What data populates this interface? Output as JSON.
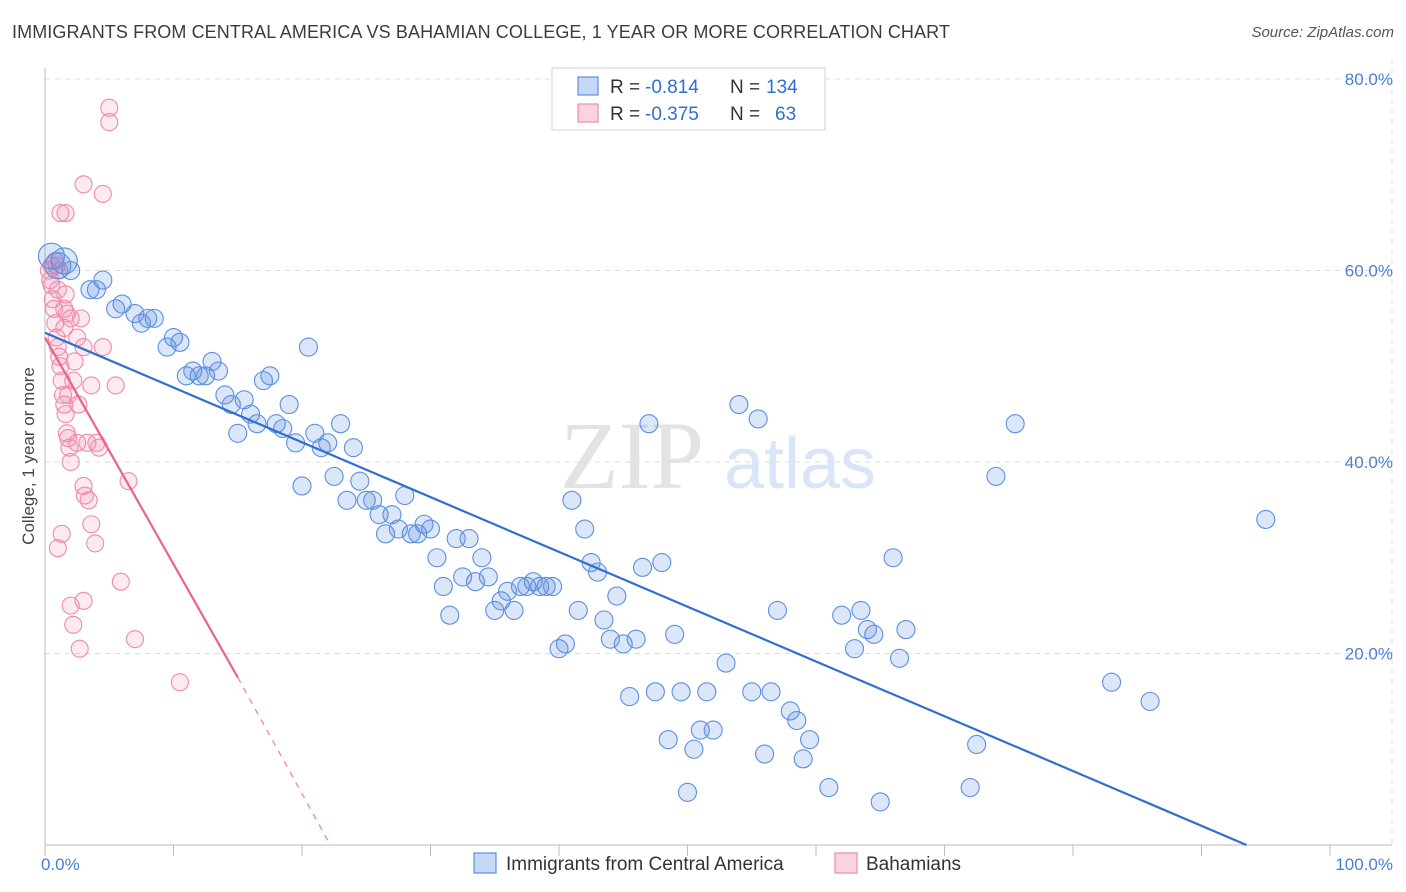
{
  "header": {
    "title": "IMMIGRANTS FROM CENTRAL AMERICA VS BAHAMIAN COLLEGE, 1 YEAR OR MORE CORRELATION CHART",
    "source": "Source: ZipAtlas.com"
  },
  "watermark": {
    "zip": "ZIP",
    "atlas": "atlas"
  },
  "legend": {
    "rows": [
      {
        "r_label": "R =",
        "r_value": "-0.814",
        "n_label": "N =",
        "n_value": "134",
        "color": "#5b8fe0"
      },
      {
        "r_label": "R =",
        "r_value": "-0.375",
        "n_label": "N =",
        "n_value": "63",
        "color": "#f08aaa"
      }
    ]
  },
  "bottom_legend": {
    "items": [
      {
        "label": "Immigrants from Central America",
        "color": "#5b8fe0"
      },
      {
        "label": "Bahamians",
        "color": "#f08aaa"
      }
    ]
  },
  "chart_data": {
    "type": "scatter",
    "title": "IMMIGRANTS FROM CENTRAL AMERICA VS BAHAMIAN COLLEGE, 1 YEAR OR MORE CORRELATION CHART",
    "xlabel": "",
    "ylabel": "College, 1 year or more",
    "xlim": [
      0,
      100
    ],
    "ylim": [
      0,
      83
    ],
    "x_tick_labels": [
      "0.0%",
      "100.0%"
    ],
    "y_ticks": [
      20,
      40,
      60,
      80
    ],
    "y_tick_labels": [
      "20.0%",
      "40.0%",
      "60.0%",
      "80.0%"
    ],
    "grid": true,
    "legend_position": "top-center",
    "series": [
      {
        "name": "Immigrants from Central America",
        "color": "#5b8fe0",
        "trend": {
          "x": [
            0,
            93.5
          ],
          "y": [
            53.5,
            0
          ]
        },
        "points": [
          [
            0.5,
            61.5
          ],
          [
            1,
            60.5
          ],
          [
            1.5,
            61
          ],
          [
            2,
            60
          ],
          [
            4.5,
            59
          ],
          [
            3.5,
            58
          ],
          [
            4,
            58
          ],
          [
            6,
            56.5
          ],
          [
            5.5,
            56
          ],
          [
            8.5,
            55
          ],
          [
            7,
            55.5
          ],
          [
            7.5,
            54.5
          ],
          [
            8,
            55
          ],
          [
            9.5,
            52
          ],
          [
            10,
            53
          ],
          [
            10.5,
            52.5
          ],
          [
            11,
            49
          ],
          [
            11.5,
            49.5
          ],
          [
            12,
            49
          ],
          [
            12.5,
            49
          ],
          [
            13,
            50.5
          ],
          [
            13.5,
            49.5
          ],
          [
            14,
            47
          ],
          [
            14.5,
            46
          ],
          [
            15,
            43
          ],
          [
            15.5,
            46.5
          ],
          [
            16,
            45
          ],
          [
            16.5,
            44
          ],
          [
            17,
            48.5
          ],
          [
            17.5,
            49
          ],
          [
            18,
            44
          ],
          [
            18.5,
            43.5
          ],
          [
            19,
            46
          ],
          [
            19.5,
            42
          ],
          [
            20,
            37.5
          ],
          [
            20.5,
            52
          ],
          [
            21,
            43
          ],
          [
            21.5,
            41.5
          ],
          [
            22,
            42
          ],
          [
            22.5,
            38.5
          ],
          [
            23,
            44
          ],
          [
            23.5,
            36
          ],
          [
            24,
            41.5
          ],
          [
            24.5,
            38
          ],
          [
            25,
            36
          ],
          [
            25.5,
            36
          ],
          [
            26,
            34.5
          ],
          [
            26.5,
            32.5
          ],
          [
            27,
            34.5
          ],
          [
            27.5,
            33
          ],
          [
            28,
            36.5
          ],
          [
            28.5,
            32.5
          ],
          [
            29,
            32.5
          ],
          [
            29.5,
            33.5
          ],
          [
            30,
            33
          ],
          [
            30.5,
            30
          ],
          [
            31,
            27
          ],
          [
            31.5,
            24
          ],
          [
            32,
            32
          ],
          [
            32.5,
            28
          ],
          [
            33,
            32
          ],
          [
            33.5,
            27.5
          ],
          [
            34,
            30
          ],
          [
            34.5,
            28
          ],
          [
            35,
            24.5
          ],
          [
            35.5,
            25.5
          ],
          [
            36,
            26.5
          ],
          [
            36.5,
            24.5
          ],
          [
            37,
            27
          ],
          [
            37.5,
            27
          ],
          [
            38,
            27.5
          ],
          [
            38.5,
            27
          ],
          [
            39,
            27
          ],
          [
            39.5,
            27
          ],
          [
            40,
            20.5
          ],
          [
            40.5,
            21
          ],
          [
            41,
            36
          ],
          [
            41.5,
            24.5
          ],
          [
            42,
            33
          ],
          [
            42.5,
            29.5
          ],
          [
            43,
            28.5
          ],
          [
            43.5,
            23.5
          ],
          [
            44,
            21.5
          ],
          [
            44.5,
            26
          ],
          [
            45,
            21
          ],
          [
            45.5,
            15.5
          ],
          [
            46,
            21.5
          ],
          [
            46.5,
            29
          ],
          [
            47,
            44
          ],
          [
            47.5,
            16
          ],
          [
            48,
            29.5
          ],
          [
            48.5,
            11
          ],
          [
            49,
            22
          ],
          [
            49.5,
            16
          ],
          [
            50,
            5.5
          ],
          [
            50.5,
            10
          ],
          [
            51,
            12
          ],
          [
            51.5,
            16
          ],
          [
            52,
            12
          ],
          [
            53,
            19
          ],
          [
            54,
            46
          ],
          [
            55,
            16
          ],
          [
            55.5,
            44.5
          ],
          [
            56,
            9.5
          ],
          [
            56.5,
            16
          ],
          [
            57,
            24.5
          ],
          [
            58,
            14
          ],
          [
            58.5,
            13
          ],
          [
            59,
            9
          ],
          [
            59.5,
            11
          ],
          [
            61,
            6
          ],
          [
            62,
            24
          ],
          [
            63,
            20.5
          ],
          [
            63.5,
            24.5
          ],
          [
            64,
            22.5
          ],
          [
            64.5,
            22
          ],
          [
            65,
            4.5
          ],
          [
            66,
            30
          ],
          [
            66.5,
            19.5
          ],
          [
            67,
            22.5
          ],
          [
            72,
            6
          ],
          [
            72.5,
            10.5
          ],
          [
            74,
            38.5
          ],
          [
            75.5,
            44
          ],
          [
            83,
            17
          ],
          [
            86,
            15
          ],
          [
            95,
            34
          ]
        ]
      },
      {
        "name": "Bahamians",
        "color": "#f08aaa",
        "trend": {
          "x": [
            0,
            15
          ],
          "y": [
            53,
            17.5
          ]
        },
        "trend_dashed": {
          "x": [
            15,
            22
          ],
          "y": [
            17.5,
            0.5
          ]
        },
        "points": [
          [
            0.3,
            60
          ],
          [
            0.4,
            59
          ],
          [
            0.5,
            58.5
          ],
          [
            0.6,
            57
          ],
          [
            0.7,
            56
          ],
          [
            0.8,
            54.5
          ],
          [
            0.9,
            53
          ],
          [
            1.0,
            52
          ],
          [
            1.1,
            51
          ],
          [
            1.2,
            50
          ],
          [
            1.3,
            48.5
          ],
          [
            1.4,
            47
          ],
          [
            1.5,
            46
          ],
          [
            1.6,
            45
          ],
          [
            1.7,
            43
          ],
          [
            1.8,
            42.5
          ],
          [
            1.9,
            41.5
          ],
          [
            2.0,
            40
          ],
          [
            0.5,
            60.5
          ],
          [
            1.0,
            58
          ],
          [
            1.5,
            56
          ],
          [
            2.0,
            55
          ],
          [
            2.5,
            53
          ],
          [
            3.0,
            52
          ],
          [
            1.2,
            66
          ],
          [
            1.6,
            66
          ],
          [
            3.0,
            69
          ],
          [
            4.5,
            68
          ],
          [
            5,
            77
          ],
          [
            5,
            75.5
          ],
          [
            0.8,
            61
          ],
          [
            1.1,
            60
          ],
          [
            1.6,
            57.5
          ],
          [
            1.7,
            55.5
          ],
          [
            2.2,
            48.5
          ],
          [
            2.6,
            46
          ],
          [
            3.3,
            42
          ],
          [
            3.6,
            48
          ],
          [
            4.2,
            41.5
          ],
          [
            4.5,
            52
          ],
          [
            5.5,
            48
          ],
          [
            6.5,
            38
          ],
          [
            3.0,
            37.5
          ],
          [
            3.1,
            36.5
          ],
          [
            3.4,
            36
          ],
          [
            3.6,
            33.5
          ],
          [
            3.9,
            31.5
          ],
          [
            1.3,
            32.5
          ],
          [
            1.0,
            31
          ],
          [
            2.0,
            25
          ],
          [
            3.0,
            25.5
          ],
          [
            2.2,
            23
          ],
          [
            2.7,
            20.5
          ],
          [
            5.9,
            27.5
          ],
          [
            7.0,
            21.5
          ],
          [
            10.5,
            17
          ],
          [
            2.5,
            42
          ],
          [
            4.0,
            42
          ],
          [
            1.8,
            47
          ],
          [
            2.3,
            50.5
          ],
          [
            1.5,
            54
          ],
          [
            0.9,
            60.5
          ],
          [
            2.8,
            55
          ]
        ]
      }
    ]
  }
}
